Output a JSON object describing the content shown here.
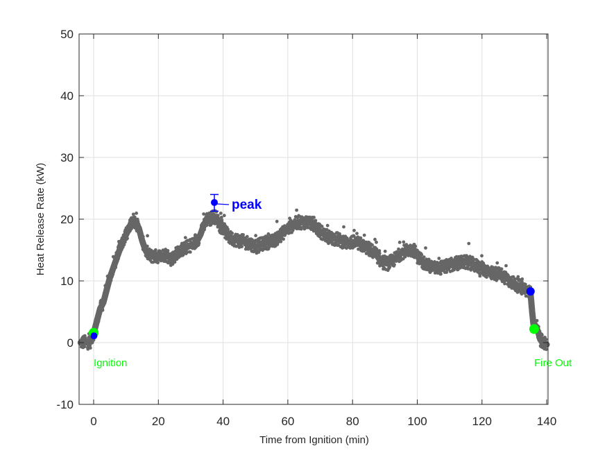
{
  "chart_data": {
    "type": "line",
    "title": "",
    "xlabel": "Time from Ignition (min)",
    "ylabel": "Heat Release Rate (kW)",
    "xlim": [
      -4.5,
      140.5
    ],
    "ylim": [
      -10,
      50
    ],
    "xticks": [
      0,
      20,
      40,
      60,
      80,
      100,
      120,
      140
    ],
    "yticks": [
      -10,
      0,
      10,
      20,
      30,
      40,
      50
    ],
    "grid": true,
    "legend": null,
    "series": [
      {
        "name": "Heat Release Rate",
        "color": "#666666",
        "x": [
          -4,
          -3,
          -2,
          -1,
          -0.5,
          0,
          1,
          2,
          3,
          4,
          5,
          6,
          7,
          8,
          9,
          10,
          11,
          12,
          13,
          14,
          15,
          16,
          17,
          18,
          19,
          20,
          21,
          22,
          23,
          24,
          25,
          26,
          27,
          28,
          29,
          30,
          31,
          32,
          33,
          34,
          35,
          36,
          37,
          38,
          39,
          40,
          42,
          45,
          48,
          50,
          53,
          55,
          57,
          60,
          63,
          65,
          67,
          70,
          73,
          75,
          78,
          80,
          82,
          85,
          87,
          89,
          91,
          93,
          95,
          97,
          99,
          100,
          102,
          104,
          106,
          108,
          110,
          112,
          114,
          116,
          118,
          120,
          122,
          124,
          126,
          128,
          130,
          132,
          134,
          135,
          135.5,
          136,
          137,
          137.5,
          138,
          139,
          140
        ],
        "y": [
          0,
          0.1,
          0,
          0.2,
          0.8,
          1.5,
          3.5,
          5.5,
          6.5,
          8.5,
          10.5,
          12,
          13.5,
          15,
          16.5,
          17.5,
          18.5,
          20,
          19.5,
          18.5,
          16.5,
          15,
          14.2,
          14,
          14,
          14,
          14,
          14.3,
          14,
          13.5,
          14,
          14.8,
          15,
          15.2,
          15.5,
          15.8,
          16,
          16.5,
          17.5,
          19,
          20,
          20,
          20.5,
          20.2,
          19,
          18.5,
          17,
          16.5,
          16.2,
          15.5,
          16.2,
          16.3,
          17,
          18.5,
          19.5,
          19.5,
          19.5,
          18,
          17,
          16.8,
          16.2,
          16.3,
          16,
          15.2,
          14.5,
          13,
          12.8,
          13.5,
          14.5,
          15,
          15,
          14,
          13,
          12.3,
          12,
          12.2,
          12.5,
          12.8,
          13,
          13,
          12.5,
          12,
          11.5,
          11.2,
          11,
          10.3,
          9.5,
          9,
          8.5,
          8,
          5,
          2.5,
          2,
          1.5,
          0.5,
          0,
          -0.3
        ]
      }
    ],
    "markers": [
      {
        "name": "ignition-green",
        "x": 0.0,
        "y": 1.6,
        "color": "#00ff00",
        "radius": 7
      },
      {
        "name": "ignition-blue",
        "x": 0.1,
        "y": 1.1,
        "color": "#0000ff",
        "radius": 5
      },
      {
        "name": "peak",
        "x": 37.3,
        "y": 22.7,
        "color": "#0000ff",
        "radius": 5,
        "error_low": 21.3,
        "error_high": 24.0
      },
      {
        "name": "fire-out-blue",
        "x": 135.0,
        "y": 8.3,
        "color": "#0000ff",
        "radius": 6
      },
      {
        "name": "fire-out-green",
        "x": 136.1,
        "y": 2.2,
        "color": "#00ff00",
        "radius": 7
      }
    ],
    "annotations": [
      {
        "text": "Ignition",
        "x": 0,
        "y": -3.2,
        "color": "#00ff00"
      },
      {
        "text": "peak",
        "x": 42.5,
        "y": 22.3,
        "color": "#0000ff",
        "arrow_from_x": 41.5,
        "arrow_to_x": 38.3
      },
      {
        "text": "Fire Out",
        "x": 136,
        "y": -3.2,
        "color": "#00ff00"
      }
    ]
  },
  "labels": {
    "xlabel": "Time from Ignition (min)",
    "ylabel": "Heat Release Rate (kW)",
    "ignition": "Ignition",
    "peak": "peak",
    "fire_out": "Fire Out"
  },
  "colors": {
    "trace": "#666666",
    "ignition_marker": "#00ff00",
    "event_marker": "#0000ff",
    "grid": "#dfdfdf",
    "axis": "#262626"
  }
}
